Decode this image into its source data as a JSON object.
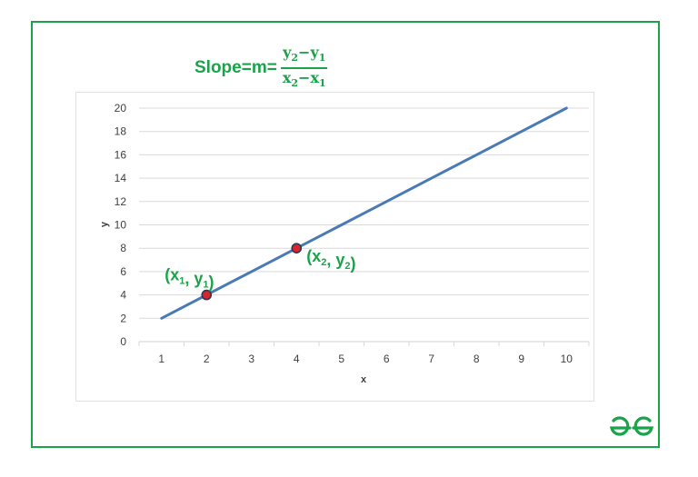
{
  "formula": {
    "lhs": "Slope=m=",
    "num_y2": "y",
    "num_y2_sub": "2",
    "num_minus": "−",
    "num_y1": "y",
    "num_y1_sub": "1",
    "den_x2": "x",
    "den_x2_sub": "2",
    "den_minus": "−",
    "den_x1": "x",
    "den_x1_sub": "1"
  },
  "colors": {
    "frame": "#1aa34a",
    "accent_green": "#1aa34a",
    "line": "#4a7ab5",
    "point_fill": "#d9262e",
    "gridline": "#d9d9d9",
    "tick_text": "#404040"
  },
  "logo_icon": "geeksforgeeks-logo-icon",
  "chart_data": {
    "type": "line",
    "x": [
      1,
      2,
      3,
      4,
      5,
      6,
      7,
      8,
      9,
      10
    ],
    "series": [
      {
        "values": [
          2,
          4,
          6,
          8,
          10,
          12,
          14,
          16,
          18,
          20
        ]
      }
    ],
    "xlabel": "x",
    "ylabel": "y",
    "xticks": [
      "1",
      "2",
      "3",
      "4",
      "5",
      "6",
      "7",
      "8",
      "9",
      "10"
    ],
    "yticks": [
      "0",
      "2",
      "4",
      "6",
      "8",
      "10",
      "12",
      "14",
      "16",
      "18",
      "20"
    ],
    "ylim": [
      0,
      20
    ],
    "grid": "horizontal",
    "highlighted_points": [
      {
        "x": 2,
        "y": 4,
        "label_main": "(x",
        "label_sub": "1",
        "label_mid": ", y",
        "label_sub2": "1",
        "label_end": ")",
        "label_side": "above-left"
      },
      {
        "x": 4,
        "y": 8,
        "label_main": "(x",
        "label_sub": "2",
        "label_mid": ", y",
        "label_sub2": "2",
        "label_end": ")",
        "label_side": "below-right"
      }
    ]
  }
}
